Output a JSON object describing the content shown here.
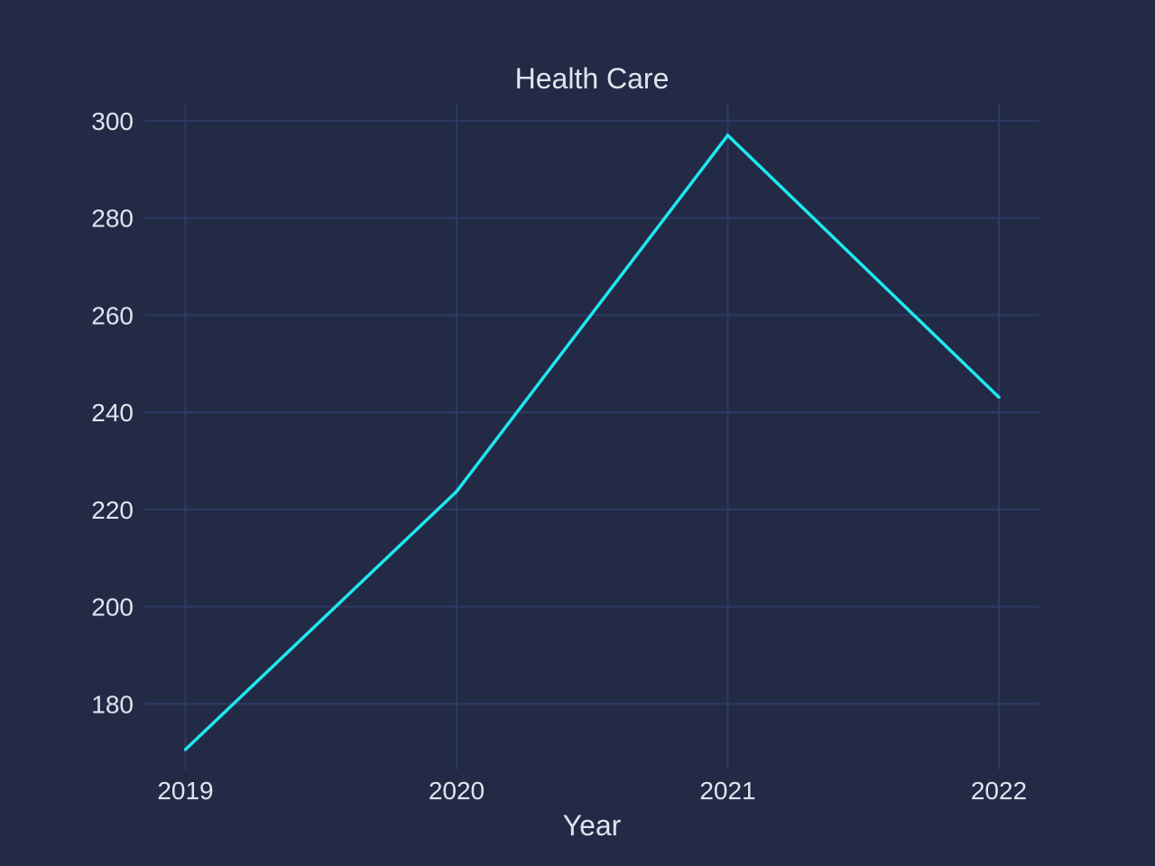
{
  "chart_data": {
    "type": "line",
    "title": "Health Care",
    "xlabel": "Year",
    "ylabel": "",
    "categories": [
      "2019",
      "2020",
      "2021",
      "2022"
    ],
    "series": [
      {
        "values": [
          170.6,
          223.7,
          297.0,
          243.1
        ]
      }
    ],
    "ylim": [
      166.5,
      303.5
    ],
    "yticks": [
      180,
      200,
      220,
      240,
      260,
      280,
      300
    ],
    "grid": true,
    "colors": {
      "background": "#222a46",
      "grid": "#2d3a64",
      "text": "#e1e4ee",
      "line": "#1ee8ef"
    }
  }
}
